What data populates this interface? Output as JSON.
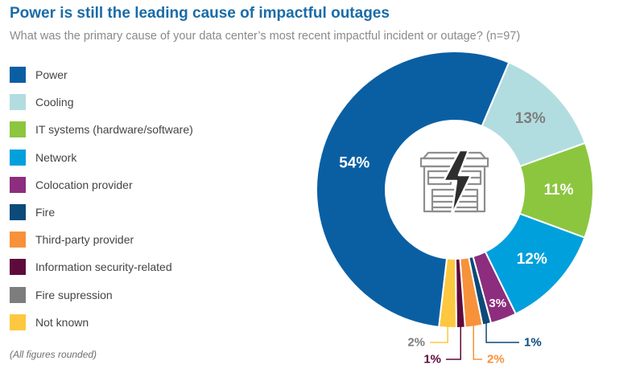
{
  "header": {
    "title": "Power is still the leading cause of impactful outages",
    "subtitle": "What was the primary cause of your data center’s most recent impactful incident or outage? (n=97)"
  },
  "footnote": "(All figures rounded)",
  "chart_data": {
    "type": "pie",
    "title": "Power is still the leading cause of impactful outages",
    "subtitle": "What was the primary cause of your data center’s most recent impactful incident or outage? (n=97)",
    "legend_position": "left",
    "center_icon": "data-center-building-lightning-icon",
    "slices": [
      {
        "label": "Power",
        "value": 54,
        "value_label": "54%",
        "color": "#0a5fa3"
      },
      {
        "label": "Cooling",
        "value": 13,
        "value_label": "13%",
        "color": "#b2dde0"
      },
      {
        "label": "IT systems (hardware/software)",
        "value": 11,
        "value_label": "11%",
        "color": "#8cc63f"
      },
      {
        "label": "Network",
        "value": 12,
        "value_label": "12%",
        "color": "#00a0dc"
      },
      {
        "label": "Colocation provider",
        "value": 3,
        "value_label": "3%",
        "color": "#8d2d7e"
      },
      {
        "label": "Fire",
        "value": 1,
        "value_label": "1%",
        "color": "#0b4a79"
      },
      {
        "label": "Third-party provider",
        "value": 2,
        "value_label": "2%",
        "color": "#f7923a"
      },
      {
        "label": "Information security-related",
        "value": 1,
        "value_label": "1%",
        "color": "#5e0b3c"
      },
      {
        "label": "Fire supression",
        "value": 0,
        "value_label": "",
        "color": "#7d7d7d"
      },
      {
        "label": "Not known",
        "value": 2,
        "value_label": "2%",
        "color": "#fdc840"
      }
    ]
  }
}
